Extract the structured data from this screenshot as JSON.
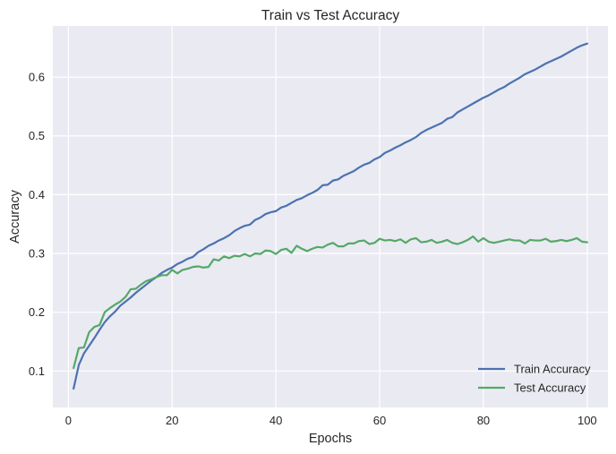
{
  "chart_data": {
    "type": "line",
    "title": "Train vs Test Accuracy",
    "xlabel": "Epochs",
    "ylabel": "Accuracy",
    "xlim": [
      -3,
      104
    ],
    "ylim": [
      0.038,
      0.687
    ],
    "xticks": [
      0,
      20,
      40,
      60,
      80,
      100
    ],
    "yticks": [
      0.1,
      0.2,
      0.3,
      0.4,
      0.5,
      0.6
    ],
    "grid": true,
    "legend_position": "lower-right",
    "x": [
      1,
      2,
      3,
      4,
      5,
      6,
      7,
      8,
      9,
      10,
      11,
      12,
      13,
      14,
      15,
      16,
      17,
      18,
      19,
      20,
      21,
      22,
      23,
      24,
      25,
      26,
      27,
      28,
      29,
      30,
      31,
      32,
      33,
      34,
      35,
      36,
      37,
      38,
      39,
      40,
      41,
      42,
      43,
      44,
      45,
      46,
      47,
      48,
      49,
      50,
      51,
      52,
      53,
      54,
      55,
      56,
      57,
      58,
      59,
      60,
      61,
      62,
      63,
      64,
      65,
      66,
      67,
      68,
      69,
      70,
      71,
      72,
      73,
      74,
      75,
      76,
      77,
      78,
      79,
      80,
      81,
      82,
      83,
      84,
      85,
      86,
      87,
      88,
      89,
      90,
      91,
      92,
      93,
      94,
      95,
      96,
      97,
      98,
      99,
      100
    ],
    "series": [
      {
        "name": "Train Accuracy",
        "color": "#4c72b0",
        "values": [
          0.07,
          0.11,
          0.13,
          0.143,
          0.156,
          0.17,
          0.183,
          0.193,
          0.201,
          0.211,
          0.218,
          0.225,
          0.233,
          0.24,
          0.247,
          0.254,
          0.26,
          0.267,
          0.272,
          0.276,
          0.282,
          0.286,
          0.291,
          0.294,
          0.302,
          0.307,
          0.313,
          0.317,
          0.322,
          0.326,
          0.331,
          0.338,
          0.343,
          0.347,
          0.349,
          0.357,
          0.361,
          0.367,
          0.37,
          0.372,
          0.378,
          0.381,
          0.386,
          0.391,
          0.394,
          0.399,
          0.403,
          0.408,
          0.416,
          0.417,
          0.424,
          0.426,
          0.432,
          0.436,
          0.44,
          0.446,
          0.451,
          0.454,
          0.46,
          0.464,
          0.471,
          0.475,
          0.48,
          0.484,
          0.489,
          0.493,
          0.498,
          0.505,
          0.51,
          0.514,
          0.518,
          0.522,
          0.529,
          0.532,
          0.54,
          0.545,
          0.55,
          0.555,
          0.56,
          0.565,
          0.569,
          0.574,
          0.579,
          0.583,
          0.589,
          0.594,
          0.599,
          0.605,
          0.609,
          0.613,
          0.618,
          0.623,
          0.627,
          0.631,
          0.635,
          0.64,
          0.645,
          0.65,
          0.654,
          0.657
        ]
      },
      {
        "name": "Test Accuracy",
        "color": "#55a868",
        "values": [
          0.105,
          0.139,
          0.14,
          0.166,
          0.175,
          0.178,
          0.2,
          0.207,
          0.213,
          0.218,
          0.226,
          0.239,
          0.24,
          0.247,
          0.253,
          0.256,
          0.26,
          0.263,
          0.263,
          0.272,
          0.266,
          0.272,
          0.274,
          0.277,
          0.278,
          0.276,
          0.277,
          0.29,
          0.288,
          0.295,
          0.292,
          0.296,
          0.295,
          0.299,
          0.295,
          0.3,
          0.299,
          0.305,
          0.304,
          0.299,
          0.306,
          0.308,
          0.301,
          0.313,
          0.308,
          0.304,
          0.308,
          0.311,
          0.31,
          0.315,
          0.318,
          0.312,
          0.312,
          0.317,
          0.317,
          0.321,
          0.322,
          0.316,
          0.318,
          0.325,
          0.322,
          0.323,
          0.321,
          0.324,
          0.318,
          0.324,
          0.326,
          0.319,
          0.32,
          0.323,
          0.318,
          0.32,
          0.323,
          0.318,
          0.316,
          0.319,
          0.323,
          0.329,
          0.32,
          0.326,
          0.32,
          0.318,
          0.32,
          0.322,
          0.324,
          0.322,
          0.322,
          0.317,
          0.323,
          0.322,
          0.322,
          0.325,
          0.32,
          0.321,
          0.323,
          0.321,
          0.323,
          0.326,
          0.32,
          0.319
        ]
      }
    ]
  }
}
